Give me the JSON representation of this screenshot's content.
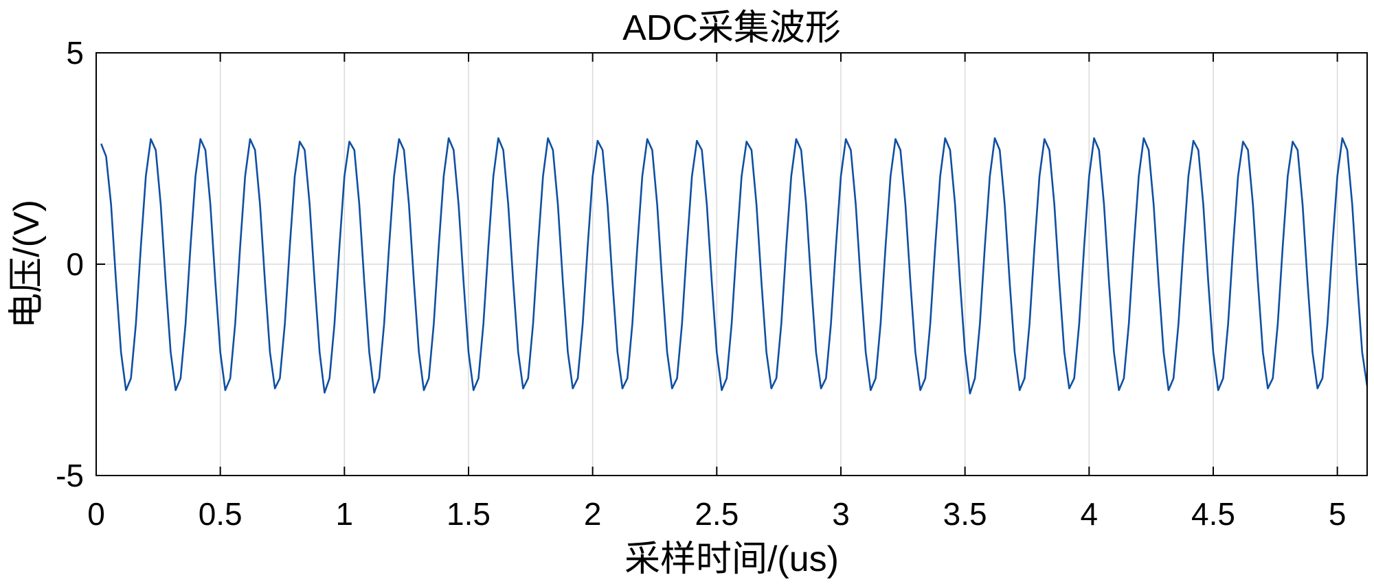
{
  "chart_data": {
    "type": "line",
    "title": "ADC采集波形",
    "xlabel": "采样时间/(us)",
    "ylabel": "电压/(V)",
    "xlim": [
      0,
      5.12
    ],
    "ylim": [
      -5,
      5
    ],
    "xticks": [
      0,
      0.5,
      1,
      1.5,
      2,
      2.5,
      3,
      3.5,
      4,
      4.5,
      5
    ],
    "yticks": [
      -5,
      0,
      5
    ],
    "grid": true,
    "colors": {
      "axes": "#000000",
      "grid": "#dcdcdc",
      "background": "#ffffff"
    },
    "series": [
      {
        "color": "#0e4fa3",
        "x": [
          0.02,
          0.04,
          0.06,
          0.08,
          0.1,
          0.12,
          0.14,
          0.16,
          0.18,
          0.2,
          0.22,
          0.24,
          0.26,
          0.28,
          0.3,
          0.32,
          0.34,
          0.36,
          0.38,
          0.4,
          0.42,
          0.44,
          0.46,
          0.48,
          0.5,
          0.52,
          0.54,
          0.56,
          0.58,
          0.6,
          0.62,
          0.64,
          0.66,
          0.68,
          0.7,
          0.72,
          0.74,
          0.76,
          0.78,
          0.8,
          0.82,
          0.84,
          0.86,
          0.88,
          0.9,
          0.92,
          0.94,
          0.96,
          0.98,
          1,
          1.02,
          1.04,
          1.06,
          1.08,
          1.1,
          1.12,
          1.14,
          1.16,
          1.18,
          1.2,
          1.22,
          1.24,
          1.26,
          1.28,
          1.3,
          1.32,
          1.34,
          1.36,
          1.38,
          1.4,
          1.42,
          1.44,
          1.46,
          1.48,
          1.5,
          1.52,
          1.54,
          1.56,
          1.58,
          1.6,
          1.62,
          1.64,
          1.66,
          1.68,
          1.7,
          1.72,
          1.74,
          1.76,
          1.78,
          1.8,
          1.82,
          1.84,
          1.86,
          1.88,
          1.9,
          1.92,
          1.94,
          1.96,
          1.98,
          2,
          2.02,
          2.04,
          2.06,
          2.08,
          2.1,
          2.12,
          2.14,
          2.16,
          2.18,
          2.2,
          2.22,
          2.24,
          2.26,
          2.28,
          2.3,
          2.32,
          2.34,
          2.36,
          2.38,
          2.4,
          2.42,
          2.44,
          2.46,
          2.48,
          2.5,
          2.52,
          2.54,
          2.56,
          2.58,
          2.6,
          2.62,
          2.64,
          2.66,
          2.68,
          2.7,
          2.72,
          2.74,
          2.76,
          2.78,
          2.8,
          2.82,
          2.84,
          2.86,
          2.88,
          2.9,
          2.92,
          2.94,
          2.96,
          2.98,
          3,
          3.02,
          3.04,
          3.06,
          3.08,
          3.1,
          3.12,
          3.14,
          3.16,
          3.18,
          3.2,
          3.22,
          3.24,
          3.26,
          3.28,
          3.3,
          3.32,
          3.34,
          3.36,
          3.38,
          3.4,
          3.42,
          3.44,
          3.46,
          3.48,
          3.5,
          3.52,
          3.54,
          3.56,
          3.58,
          3.6,
          3.62,
          3.64,
          3.66,
          3.68,
          3.7,
          3.72,
          3.74,
          3.76,
          3.78,
          3.8,
          3.82,
          3.84,
          3.86,
          3.88,
          3.9,
          3.92,
          3.94,
          3.96,
          3.98,
          4,
          4.02,
          4.04,
          4.06,
          4.08,
          4.1,
          4.12,
          4.14,
          4.16,
          4.18,
          4.2,
          4.22,
          4.24,
          4.26,
          4.28,
          4.3,
          4.32,
          4.34,
          4.36,
          4.38,
          4.4,
          4.42,
          4.44,
          4.46,
          4.48,
          4.5,
          4.52,
          4.54,
          4.56,
          4.58,
          4.6,
          4.62,
          4.64,
          4.66,
          4.68,
          4.7,
          4.72,
          4.74,
          4.76,
          4.78,
          4.8,
          4.82,
          4.84,
          4.86,
          4.88,
          4.9,
          4.92,
          4.94,
          4.96,
          4.98,
          5,
          5.02,
          5.04,
          5.06,
          5.08,
          5.1,
          5.12
        ],
        "y": [
          2.85,
          2.55,
          1.41,
          -0.42,
          -2.08,
          -2.98,
          -2.7,
          -1.41,
          0.42,
          2.08,
          2.96,
          2.7,
          1.41,
          -0.42,
          -2.08,
          -2.98,
          -2.7,
          -1.41,
          0.42,
          2.08,
          2.96,
          2.7,
          1.41,
          -0.42,
          -2.08,
          -2.98,
          -2.7,
          -1.41,
          0.42,
          2.08,
          2.96,
          2.7,
          1.41,
          -0.42,
          -2.08,
          -2.94,
          -2.7,
          -1.41,
          0.42,
          2.08,
          2.9,
          2.7,
          1.41,
          -0.42,
          -2.08,
          -3.04,
          -2.7,
          -1.41,
          0.42,
          2.08,
          2.9,
          2.7,
          1.41,
          -0.42,
          -2.08,
          -3.04,
          -2.7,
          -1.41,
          0.42,
          2.08,
          2.96,
          2.7,
          1.41,
          -0.42,
          -2.08,
          -2.98,
          -2.7,
          -1.41,
          0.42,
          2.08,
          2.98,
          2.7,
          1.41,
          -0.42,
          -2.08,
          -2.98,
          -2.7,
          -1.41,
          0.42,
          2.08,
          2.98,
          2.7,
          1.41,
          -0.42,
          -2.08,
          -2.94,
          -2.7,
          -1.41,
          0.42,
          2.08,
          2.98,
          2.7,
          1.41,
          -0.42,
          -2.08,
          -2.94,
          -2.7,
          -1.41,
          0.42,
          2.08,
          2.92,
          2.7,
          1.41,
          -0.42,
          -2.08,
          -2.94,
          -2.7,
          -1.41,
          0.42,
          2.08,
          2.96,
          2.7,
          1.41,
          -0.42,
          -2.08,
          -2.94,
          -2.7,
          -1.41,
          0.42,
          2.08,
          2.92,
          2.7,
          1.41,
          -0.42,
          -2.08,
          -2.98,
          -2.7,
          -1.41,
          0.42,
          2.08,
          2.9,
          2.7,
          1.41,
          -0.42,
          -2.08,
          -2.94,
          -2.7,
          -1.41,
          0.42,
          2.08,
          2.96,
          2.7,
          1.41,
          -0.42,
          -2.08,
          -2.94,
          -2.7,
          -1.41,
          0.42,
          2.08,
          2.96,
          2.7,
          1.41,
          -0.42,
          -2.08,
          -2.98,
          -2.7,
          -1.41,
          0.42,
          2.08,
          2.96,
          2.7,
          1.41,
          -0.42,
          -2.08,
          -2.98,
          -2.7,
          -1.41,
          0.42,
          2.08,
          2.98,
          2.7,
          1.41,
          -0.42,
          -2.08,
          -3.06,
          -2.7,
          -1.41,
          0.42,
          2.08,
          2.98,
          2.7,
          1.41,
          -0.42,
          -2.08,
          -2.98,
          -2.7,
          -1.41,
          0.42,
          2.08,
          2.96,
          2.7,
          1.41,
          -0.42,
          -2.08,
          -2.94,
          -2.7,
          -1.41,
          0.42,
          2.08,
          2.98,
          2.7,
          1.41,
          -0.42,
          -2.08,
          -2.98,
          -2.7,
          -1.41,
          0.42,
          2.08,
          2.98,
          2.7,
          1.41,
          -0.42,
          -2.08,
          -2.98,
          -2.7,
          -1.41,
          0.42,
          2.08,
          2.92,
          2.7,
          1.41,
          -0.42,
          -2.08,
          -2.98,
          -2.7,
          -1.41,
          0.42,
          2.08,
          2.9,
          2.7,
          1.41,
          -0.42,
          -2.08,
          -2.94,
          -2.7,
          -1.41,
          0.42,
          2.08,
          2.9,
          2.7,
          1.41,
          -0.42,
          -2.08,
          -2.94,
          -2.7,
          -1.41,
          0.42,
          2.08,
          2.98,
          2.7,
          1.41,
          -0.42,
          -2.08,
          -2.88
        ]
      }
    ]
  }
}
